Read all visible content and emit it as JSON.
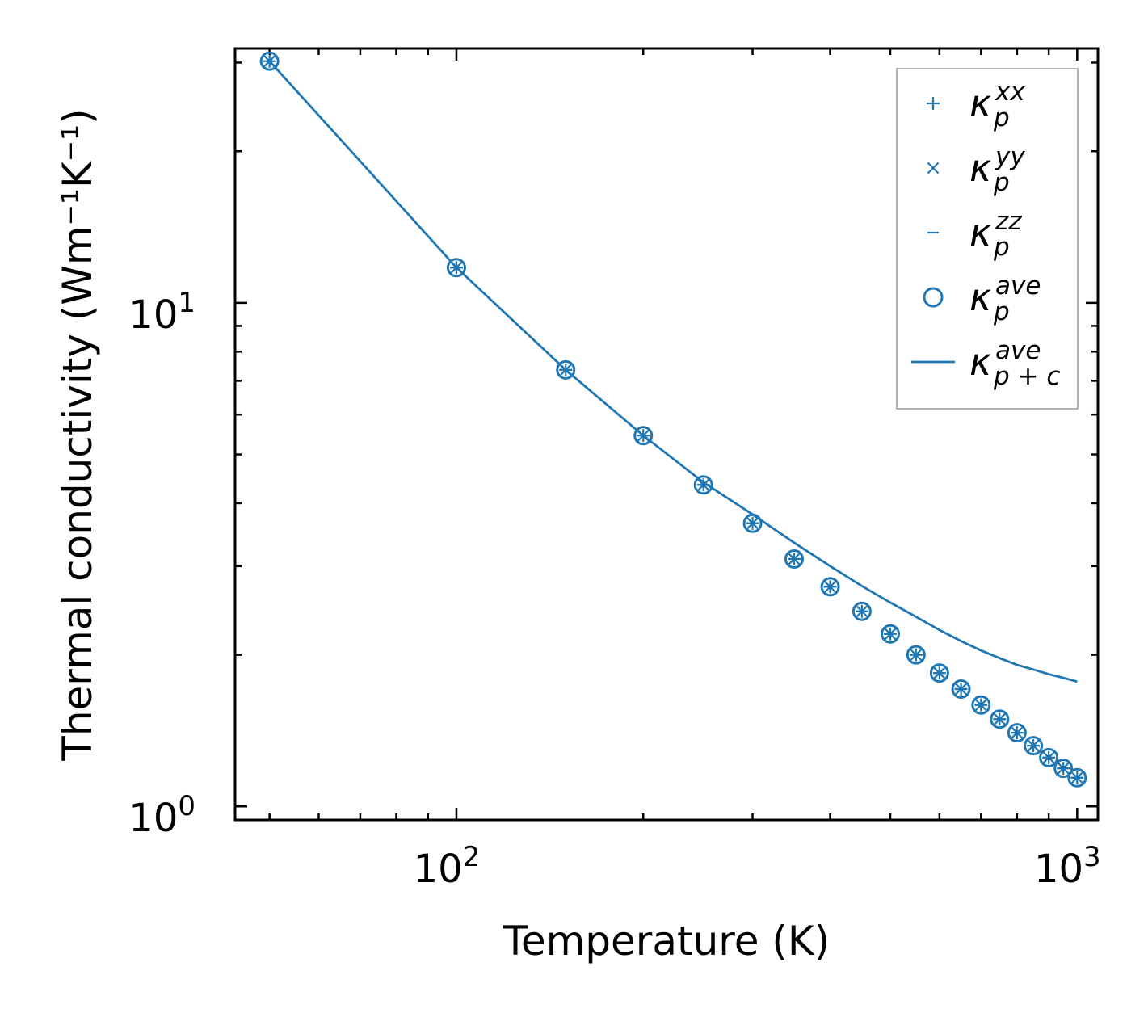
{
  "chart_data": {
    "type": "scatter",
    "xscale": "log",
    "yscale": "log",
    "xlabel": "Temperature (K)",
    "ylabel": "Thermal conductivity (Wm⁻¹K⁻¹)",
    "xlim": [
      44,
      1080
    ],
    "ylim": [
      0.94,
      32
    ],
    "x_ticks": [
      {
        "base": "10",
        "exp": "2",
        "value": 100
      },
      {
        "base": "10",
        "exp": "3",
        "value": 1000
      }
    ],
    "y_ticks": [
      {
        "base": "10",
        "exp": "0",
        "value": 1
      },
      {
        "base": "10",
        "exp": "1",
        "value": 10
      }
    ],
    "color": "#1f77b4",
    "x": [
      50,
      100,
      150,
      200,
      250,
      300,
      350,
      400,
      450,
      500,
      550,
      600,
      650,
      700,
      750,
      800,
      850,
      900,
      950,
      1000
    ],
    "series": [
      {
        "name": "kappa_p^xx",
        "marker": "plus",
        "values": [
          30.2,
          11.75,
          7.36,
          5.45,
          4.35,
          3.65,
          3.1,
          2.73,
          2.44,
          2.2,
          2.0,
          1.84,
          1.71,
          1.59,
          1.49,
          1.4,
          1.32,
          1.25,
          1.19,
          1.14
        ]
      },
      {
        "name": "kappa_p^yy",
        "marker": "x",
        "values": [
          30.2,
          11.75,
          7.36,
          5.45,
          4.35,
          3.65,
          3.1,
          2.73,
          2.44,
          2.2,
          2.0,
          1.84,
          1.71,
          1.59,
          1.49,
          1.4,
          1.32,
          1.25,
          1.19,
          1.14
        ]
      },
      {
        "name": "kappa_p^zz",
        "marker": "hline",
        "values": [
          30.2,
          11.75,
          7.36,
          5.45,
          4.35,
          3.65,
          3.1,
          2.73,
          2.44,
          2.2,
          2.0,
          1.84,
          1.71,
          1.59,
          1.49,
          1.4,
          1.32,
          1.25,
          1.19,
          1.14
        ]
      },
      {
        "name": "kappa_p^ave",
        "marker": "circle",
        "values": [
          30.2,
          11.75,
          7.36,
          5.45,
          4.35,
          3.65,
          3.1,
          2.73,
          2.44,
          2.2,
          2.0,
          1.84,
          1.71,
          1.59,
          1.49,
          1.4,
          1.32,
          1.25,
          1.19,
          1.14
        ]
      },
      {
        "name": "kappa_p+c^ave",
        "marker": "line",
        "values": [
          30.2,
          11.75,
          7.36,
          5.45,
          4.4,
          3.8,
          3.34,
          3.0,
          2.74,
          2.54,
          2.38,
          2.24,
          2.13,
          2.04,
          1.97,
          1.91,
          1.87,
          1.83,
          1.8,
          1.77
        ]
      }
    ],
    "legend": {
      "position": "top-right",
      "entries": [
        {
          "symbol": "κ",
          "sub": "p",
          "sup": "xx"
        },
        {
          "symbol": "κ",
          "sub": "p",
          "sup": "yy"
        },
        {
          "symbol": "κ",
          "sub": "p",
          "sup": "zz"
        },
        {
          "symbol": "κ",
          "sub": "p",
          "sup": "ave"
        },
        {
          "symbol": "κ",
          "sub": "p + c",
          "sup": "ave"
        }
      ]
    }
  }
}
